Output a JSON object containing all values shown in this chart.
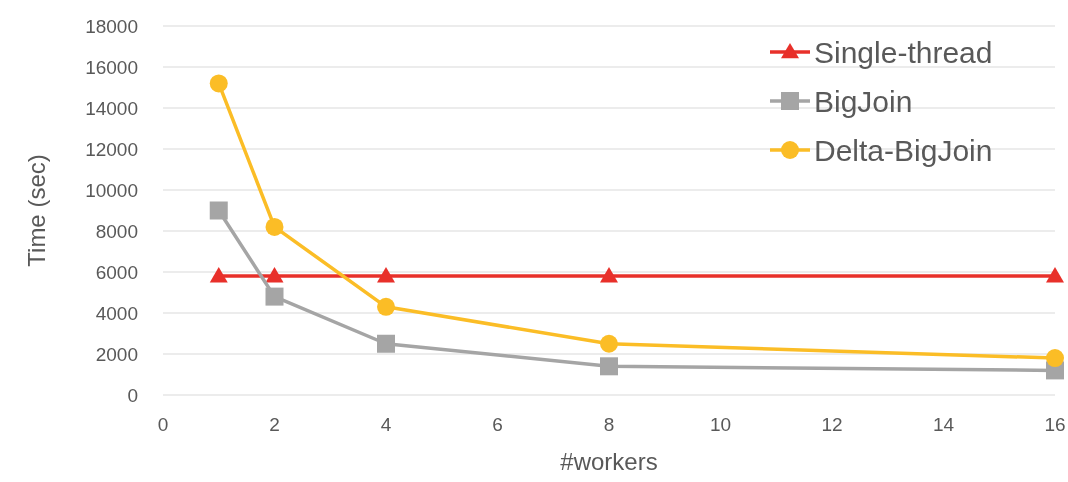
{
  "chart_data": {
    "type": "line",
    "xlabel": "#workers",
    "ylabel": "Time (sec)",
    "x": [
      1,
      2,
      4,
      8,
      16
    ],
    "series": [
      {
        "name": "Single-thread",
        "color": "#e8302a",
        "marker": "triangle",
        "values": [
          5800,
          5800,
          5800,
          5800,
          5800
        ]
      },
      {
        "name": "BigJoin",
        "color": "#a5a5a5",
        "marker": "square",
        "values": [
          9000,
          4800,
          2500,
          1400,
          1200
        ]
      },
      {
        "name": "Delta-BigJoin",
        "color": "#fbbd26",
        "marker": "circle",
        "values": [
          15200,
          8200,
          4300,
          2500,
          1800
        ]
      }
    ],
    "xlim": [
      0,
      16
    ],
    "xticks": [
      0,
      2,
      4,
      6,
      8,
      10,
      12,
      14,
      16
    ],
    "ylim": [
      0,
      18000
    ],
    "yticks": [
      0,
      2000,
      4000,
      6000,
      8000,
      10000,
      12000,
      14000,
      16000,
      18000
    ],
    "grid": "y",
    "legend": "top right"
  }
}
